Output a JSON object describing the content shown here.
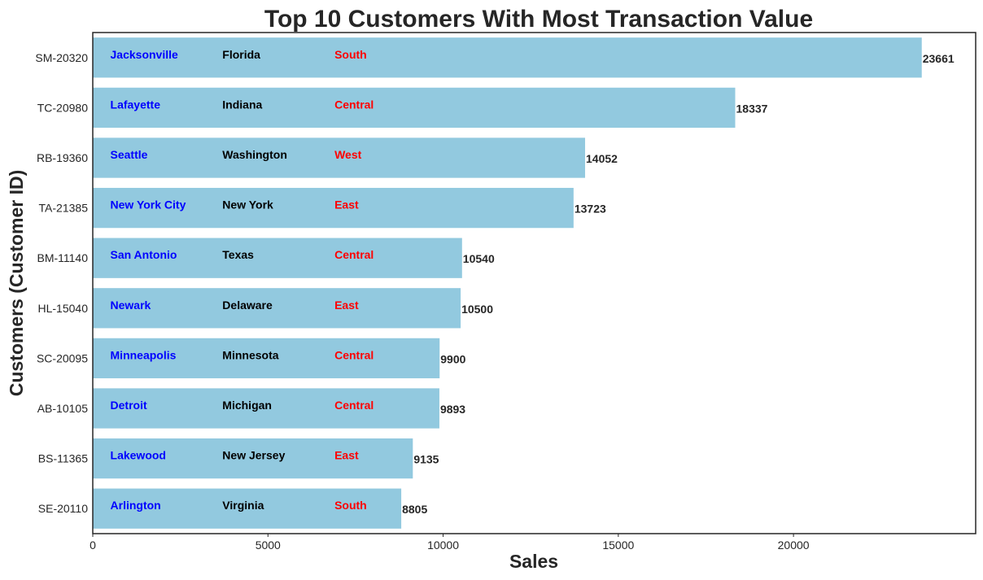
{
  "chart_data": {
    "type": "bar",
    "orientation": "horizontal",
    "title": "Top 10 Customers With Most Transaction Value",
    "xlabel": "Sales",
    "ylabel": "Customers (Customer ID)",
    "xlim": [
      0,
      25200
    ],
    "x_ticks": [
      0,
      5000,
      10000,
      15000,
      20000
    ],
    "grid": false,
    "bar_color": "#92c9df",
    "city_color": "#0000ff",
    "state_color": "#000000",
    "region_color": "#ff0000",
    "categories": [
      "SM-20320",
      "TC-20980",
      "RB-19360",
      "TA-21385",
      "BM-11140",
      "HL-15040",
      "SC-20095",
      "AB-10105",
      "BS-11365",
      "SE-20110"
    ],
    "values": [
      23661,
      18337,
      14052,
      13723,
      10540,
      10500,
      9900,
      9893,
      9135,
      8805
    ],
    "annotations": [
      {
        "city": "Jacksonville",
        "state": "Florida",
        "region": "South"
      },
      {
        "city": "Lafayette",
        "state": "Indiana",
        "region": "Central"
      },
      {
        "city": "Seattle",
        "state": "Washington",
        "region": "West"
      },
      {
        "city": "New York City",
        "state": "New York",
        "region": "East"
      },
      {
        "city": "San Antonio",
        "state": "Texas",
        "region": "Central"
      },
      {
        "city": "Newark",
        "state": "Delaware",
        "region": "East"
      },
      {
        "city": "Minneapolis",
        "state": "Minnesota",
        "region": "Central"
      },
      {
        "city": "Detroit",
        "state": "Michigan",
        "region": "Central"
      },
      {
        "city": "Lakewood",
        "state": "New Jersey",
        "region": "East"
      },
      {
        "city": "Arlington",
        "state": "Virginia",
        "region": "South"
      }
    ]
  }
}
